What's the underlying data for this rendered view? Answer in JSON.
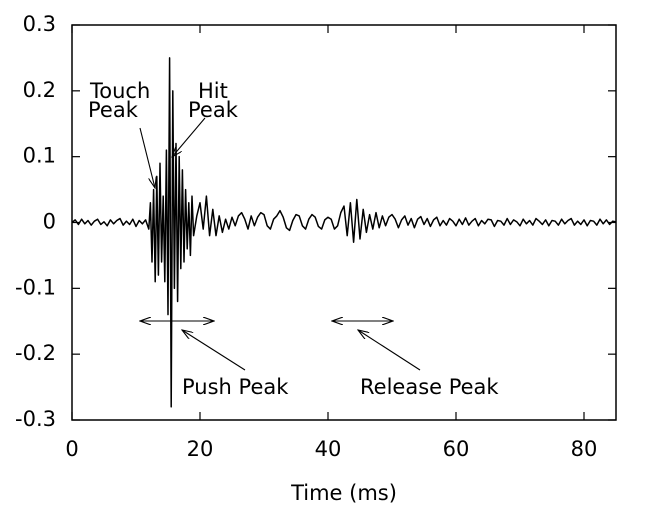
{
  "chart_data": {
    "type": "line",
    "x_label": "Time (ms)",
    "xlim": [
      0,
      85
    ],
    "ylim": [
      -0.3,
      0.3
    ],
    "xticks": [
      0,
      20,
      40,
      60,
      80
    ],
    "yticks": [
      0.3,
      0.2,
      0.1,
      0,
      -0.1,
      -0.2,
      -0.3
    ],
    "annotations": [
      {
        "lines": [
          "Touch",
          "Peak"
        ]
      },
      {
        "lines": [
          "Hit",
          "Peak"
        ]
      },
      {
        "text": "Push Peak"
      },
      {
        "text": "Release Peak"
      }
    ],
    "series": [
      {
        "color": "#000000",
        "x": [
          0,
          0.5,
          1,
          1.5,
          2,
          2.5,
          3,
          3.5,
          4,
          4.5,
          5,
          5.5,
          6,
          6.5,
          7,
          7.5,
          8,
          8.5,
          9,
          9.5,
          10,
          10.5,
          11,
          11.5,
          12,
          12.25,
          12.5,
          12.75,
          13,
          13.25,
          13.5,
          13.75,
          14,
          14.25,
          14.5,
          14.75,
          15,
          15.25,
          15.5,
          15.75,
          16,
          16.25,
          16.5,
          16.75,
          17,
          17.25,
          17.5,
          17.75,
          18,
          18.25,
          18.5,
          18.75,
          19,
          19.5,
          20,
          20.5,
          21,
          21.5,
          22,
          22.5,
          23,
          23.5,
          24,
          24.5,
          25,
          25.5,
          26,
          26.5,
          27,
          27.5,
          28,
          28.5,
          29,
          29.5,
          30,
          30.5,
          31,
          31.5,
          32,
          32.5,
          33,
          33.5,
          34,
          34.5,
          35,
          35.5,
          36,
          36.5,
          37,
          37.5,
          38,
          38.5,
          39,
          39.5,
          40,
          40.5,
          41,
          41.5,
          42,
          42.5,
          43,
          43.5,
          44,
          44.5,
          45,
          45.5,
          46,
          46.5,
          47,
          47.5,
          48,
          48.5,
          49,
          49.5,
          50,
          50.5,
          51,
          51.5,
          52,
          52.5,
          53,
          53.5,
          54,
          54.5,
          55,
          55.5,
          56,
          56.5,
          57,
          57.5,
          58,
          58.5,
          59,
          59.5,
          60,
          60.5,
          61,
          61.5,
          62,
          62.5,
          63,
          63.5,
          64,
          64.5,
          65,
          65.5,
          66,
          66.5,
          67,
          67.5,
          68,
          68.5,
          69,
          69.5,
          70,
          70.5,
          71,
          71.5,
          72,
          72.5,
          73,
          73.5,
          74,
          74.5,
          75,
          75.5,
          76,
          76.5,
          77,
          77.5,
          78,
          78.5,
          79,
          79.5,
          80,
          80.5,
          81,
          81.5,
          82,
          82.5,
          83,
          83.5,
          84,
          84.5,
          85
        ],
        "values": [
          0,
          0.004,
          -0.003,
          0.005,
          -0.002,
          0.003,
          -0.004,
          0.002,
          0.005,
          -0.003,
          0.001,
          -0.005,
          0.004,
          -0.002,
          0.003,
          0.006,
          -0.004,
          0.002,
          -0.003,
          0.005,
          -0.006,
          0.003,
          -0.002,
          0.004,
          -0.01,
          0.03,
          -0.06,
          0.05,
          -0.09,
          0.07,
          -0.08,
          0.09,
          -0.06,
          0.04,
          -0.09,
          0.11,
          -0.14,
          0.25,
          -0.28,
          0.2,
          -0.1,
          0.12,
          -0.12,
          0.1,
          -0.07,
          0.08,
          -0.06,
          0.05,
          -0.04,
          0.03,
          -0.05,
          0.04,
          -0.02,
          0.01,
          0.03,
          -0.01,
          0.04,
          -0.02,
          0.02,
          -0.02,
          0.01,
          -0.015,
          0.005,
          -0.01,
          0.008,
          -0.005,
          0.01,
          0.015,
          0.005,
          -0.01,
          0.01,
          -0.005,
          0.008,
          0.015,
          0.012,
          -0.005,
          -0.01,
          0.005,
          0.01,
          0.018,
          0.008,
          -0.008,
          -0.012,
          0.003,
          0.012,
          0.01,
          -0.005,
          -0.01,
          0.005,
          0.012,
          0.008,
          -0.006,
          -0.01,
          0.004,
          0.008,
          0.005,
          -0.01,
          -0.005,
          0.015,
          0.025,
          -0.02,
          0.03,
          -0.03,
          0.035,
          -0.025,
          0.02,
          -0.015,
          0.012,
          -0.01,
          0.015,
          -0.008,
          0.01,
          -0.005,
          0.008,
          0.012,
          0.005,
          -0.008,
          0.004,
          0.01,
          -0.004,
          0.006,
          -0.008,
          0.005,
          0.009,
          -0.003,
          0.006,
          -0.006,
          0.004,
          0.008,
          -0.005,
          0.003,
          -0.004,
          0.006,
          0.002,
          -0.005,
          0.005,
          -0.003,
          0.007,
          -0.004,
          0.002,
          0.006,
          -0.005,
          0.003,
          -0.002,
          0.005,
          0.004,
          -0.006,
          0.003,
          0.002,
          -0.004,
          0.006,
          -0.003,
          0.004,
          0.001,
          -0.005,
          0.005,
          -0.002,
          0.003,
          -0.004,
          0.006,
          0.002,
          -0.003,
          0.004,
          -0.005,
          0.003,
          0.002,
          -0.004,
          0.005,
          -0.002,
          0.003,
          0.006,
          -0.004,
          0.002,
          -0.003,
          0.004,
          -0.005,
          0.003,
          0.002,
          -0.004,
          0.005,
          -0.002,
          0.004,
          -0.003,
          0.002,
          0.001
        ]
      }
    ]
  }
}
